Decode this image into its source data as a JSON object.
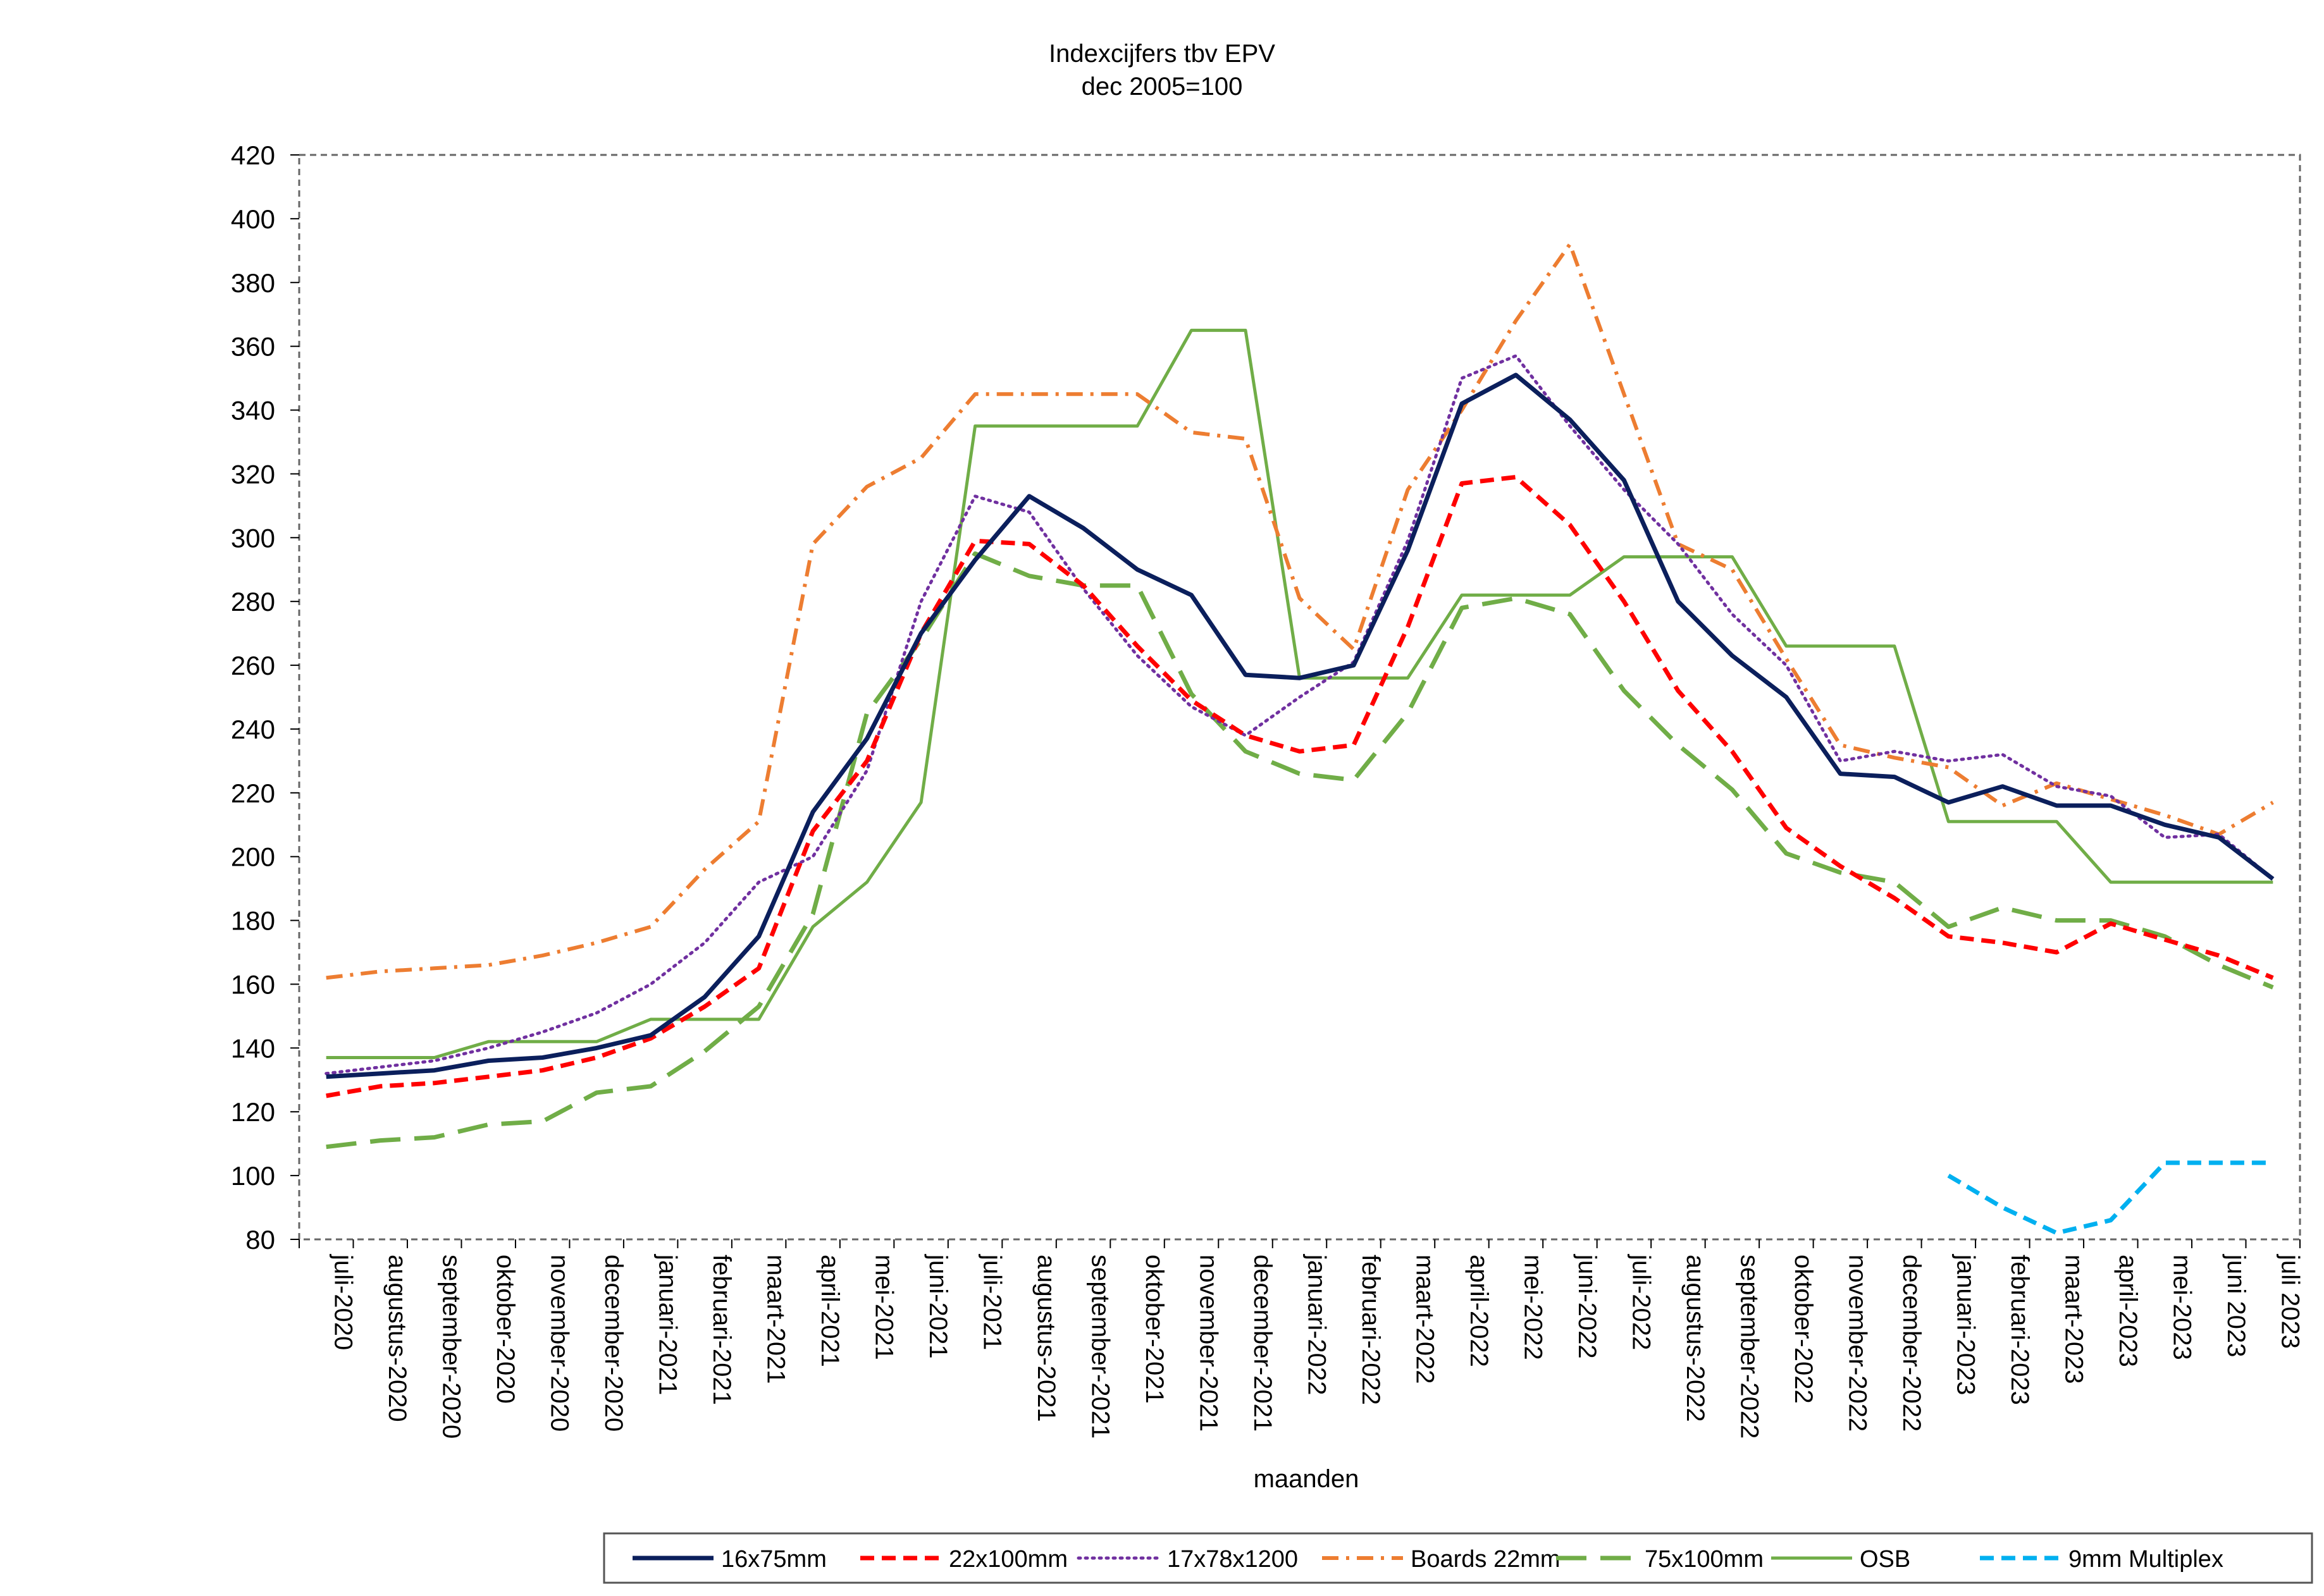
{
  "chart_data": {
    "type": "line",
    "title": "Indexcijfers tbv EPV",
    "subtitle": "dec 2005=100",
    "xlabel": "maanden",
    "ylabel": "",
    "ylim": [
      80,
      420
    ],
    "ytick_step": 20,
    "grid": false,
    "legend_position": "bottom-right",
    "categories": [
      "juli-2020",
      "augustus-2020",
      "september-2020",
      "oktober-2020",
      "november-2020",
      "december-2020",
      "januari-2021",
      "februari-2021",
      "maart-2021",
      "april-2021",
      "mei-2021",
      "juni-2021",
      "juli-2021",
      "augustus-2021",
      "september-2021",
      "oktober-2021",
      "november-2021",
      "december-2021",
      "januari-2022",
      "februari-2022",
      "maart-2022",
      "april-2022",
      "mei-2022",
      "juni-2022",
      "juli-2022",
      "augustus-2022",
      "september-2022",
      "oktober-2022",
      "november-2022",
      "december-2022",
      "januari-2023",
      "februari-2023",
      "maart-2023",
      "april-2023",
      "mei-2023",
      "juni 2023",
      "juli 2023"
    ],
    "series": [
      {
        "name": "16x75mm",
        "color": "#0b1f5c",
        "style": "solid-thick",
        "values": [
          131,
          132,
          133,
          136,
          137,
          140,
          144,
          156,
          175,
          214,
          237,
          270,
          293,
          313,
          303,
          290,
          282,
          257,
          256,
          260,
          296,
          342,
          351,
          337,
          318,
          280,
          263,
          250,
          226,
          225,
          217,
          222,
          216,
          216,
          210,
          206,
          193
        ]
      },
      {
        "name": "22x100mm",
        "color": "#ff0000",
        "style": "dashed",
        "values": [
          125,
          128,
          129,
          131,
          133,
          137,
          143,
          153,
          165,
          208,
          230,
          270,
          299,
          298,
          285,
          266,
          249,
          238,
          233,
          235,
          272,
          317,
          319,
          304,
          280,
          252,
          233,
          209,
          197,
          187,
          175,
          173,
          170,
          179,
          174,
          169,
          162
        ]
      },
      {
        "name": "17x78x1200",
        "color": "#7030a0",
        "style": "dotted",
        "values": [
          132,
          134,
          136,
          140,
          145,
          151,
          160,
          173,
          192,
          200,
          227,
          280,
          313,
          308,
          284,
          263,
          247,
          238,
          250,
          261,
          299,
          350,
          357,
          335,
          315,
          298,
          276,
          260,
          230,
          233,
          230,
          232,
          222,
          219,
          206,
          207,
          193
        ]
      },
      {
        "name": "Boards 22mm",
        "color": "#ed7d31",
        "style": "dash-dot",
        "values": [
          162,
          164,
          165,
          166,
          169,
          173,
          178,
          196,
          211,
          298,
          316,
          325,
          345,
          345,
          345,
          345,
          333,
          331,
          281,
          265,
          315,
          340,
          368,
          392,
          345,
          298,
          290,
          262,
          235,
          231,
          228,
          216,
          223,
          218,
          213,
          207,
          217
        ]
      },
      {
        "name": "75x100mm",
        "color": "#70ad47",
        "style": "long-dash",
        "values": [
          109,
          111,
          112,
          116,
          117,
          126,
          128,
          139,
          153,
          182,
          245,
          268,
          295,
          288,
          285,
          285,
          251,
          233,
          226,
          224,
          245,
          278,
          281,
          276,
          252,
          235,
          221,
          201,
          195,
          192,
          178,
          184,
          180,
          180,
          175,
          166,
          159
        ]
      },
      {
        "name": "OSB",
        "color": "#70ad47",
        "style": "solid",
        "values": [
          137,
          137,
          137,
          142,
          142,
          142,
          149,
          149,
          149,
          178,
          192,
          217,
          335,
          335,
          335,
          335,
          365,
          365,
          256,
          256,
          256,
          282,
          282,
          282,
          294,
          294,
          294,
          266,
          266,
          266,
          211,
          211,
          211,
          192,
          192,
          192,
          192
        ]
      },
      {
        "name": "9mm Multiplex",
        "color": "#00b0f0",
        "style": "dashed",
        "values": [
          null,
          null,
          null,
          null,
          null,
          null,
          null,
          null,
          null,
          null,
          null,
          null,
          null,
          null,
          null,
          null,
          null,
          null,
          null,
          null,
          null,
          null,
          null,
          null,
          null,
          null,
          null,
          null,
          null,
          null,
          100,
          90,
          82,
          86,
          104,
          104,
          104
        ]
      }
    ]
  }
}
